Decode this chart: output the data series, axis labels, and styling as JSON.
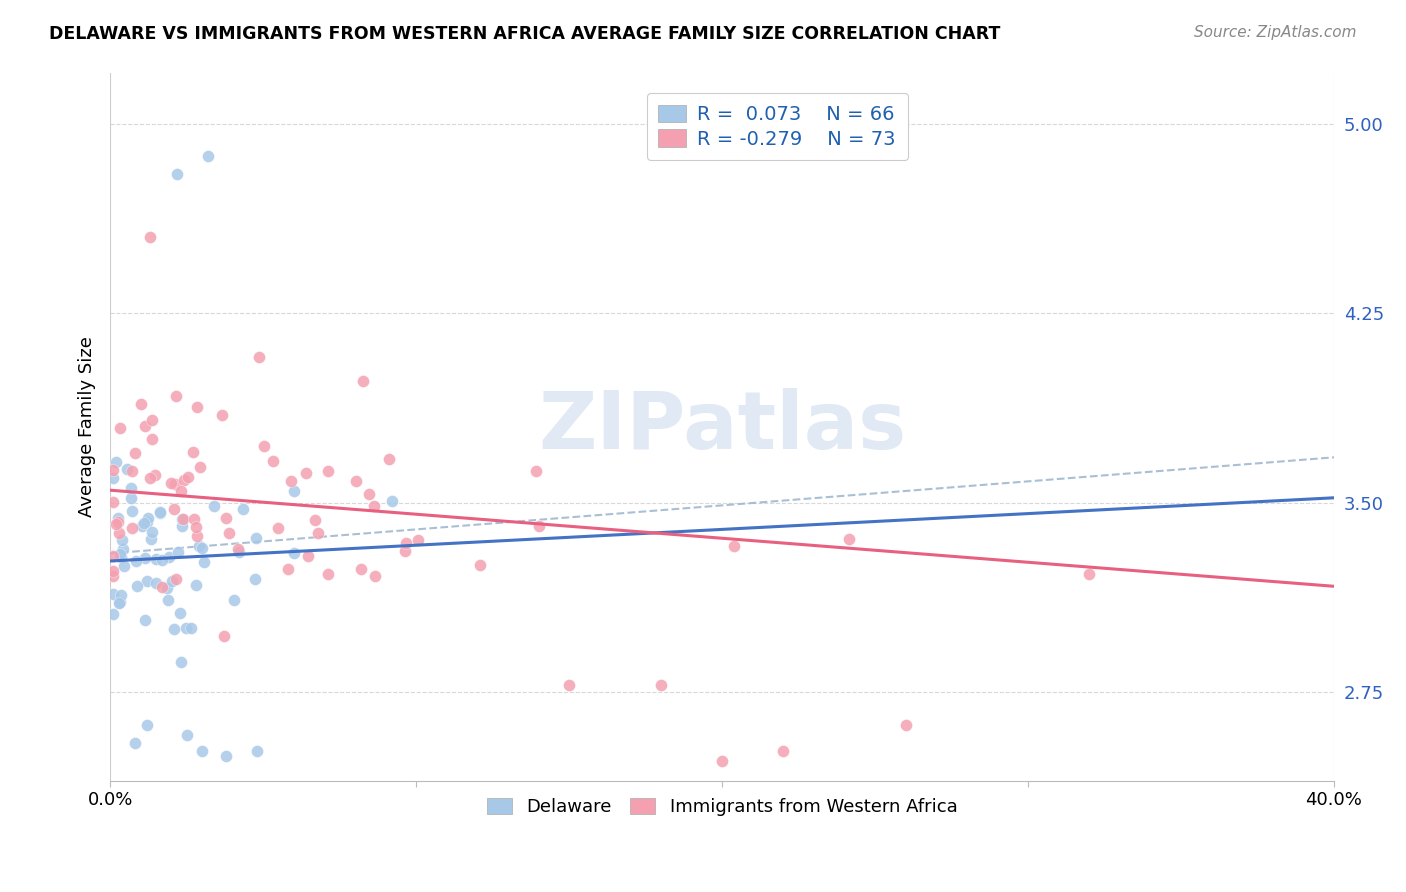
{
  "title": "DELAWARE VS IMMIGRANTS FROM WESTERN AFRICA AVERAGE FAMILY SIZE CORRELATION CHART",
  "source": "Source: ZipAtlas.com",
  "ylabel": "Average Family Size",
  "yticks": [
    2.75,
    3.5,
    4.25,
    5.0
  ],
  "xlim": [
    0.0,
    0.4
  ],
  "ylim": [
    2.4,
    5.2
  ],
  "color_blue": "#a8c8e8",
  "color_pink": "#f4a0b0",
  "color_trend_blue": "#4472c4",
  "color_trend_pink": "#e86080",
  "color_dash": "#a0b8d0",
  "watermark": "ZIPatlas",
  "del_trend_x0": 0.0,
  "del_trend_y0": 3.27,
  "del_trend_x1": 0.4,
  "del_trend_y1": 3.52,
  "wa_trend_x0": 0.0,
  "wa_trend_y0": 3.55,
  "wa_trend_x1": 0.4,
  "wa_trend_y1": 3.17,
  "dash_trend_x0": 0.0,
  "dash_trend_y0": 3.3,
  "dash_trend_x1": 0.4,
  "dash_trend_y1": 3.68
}
